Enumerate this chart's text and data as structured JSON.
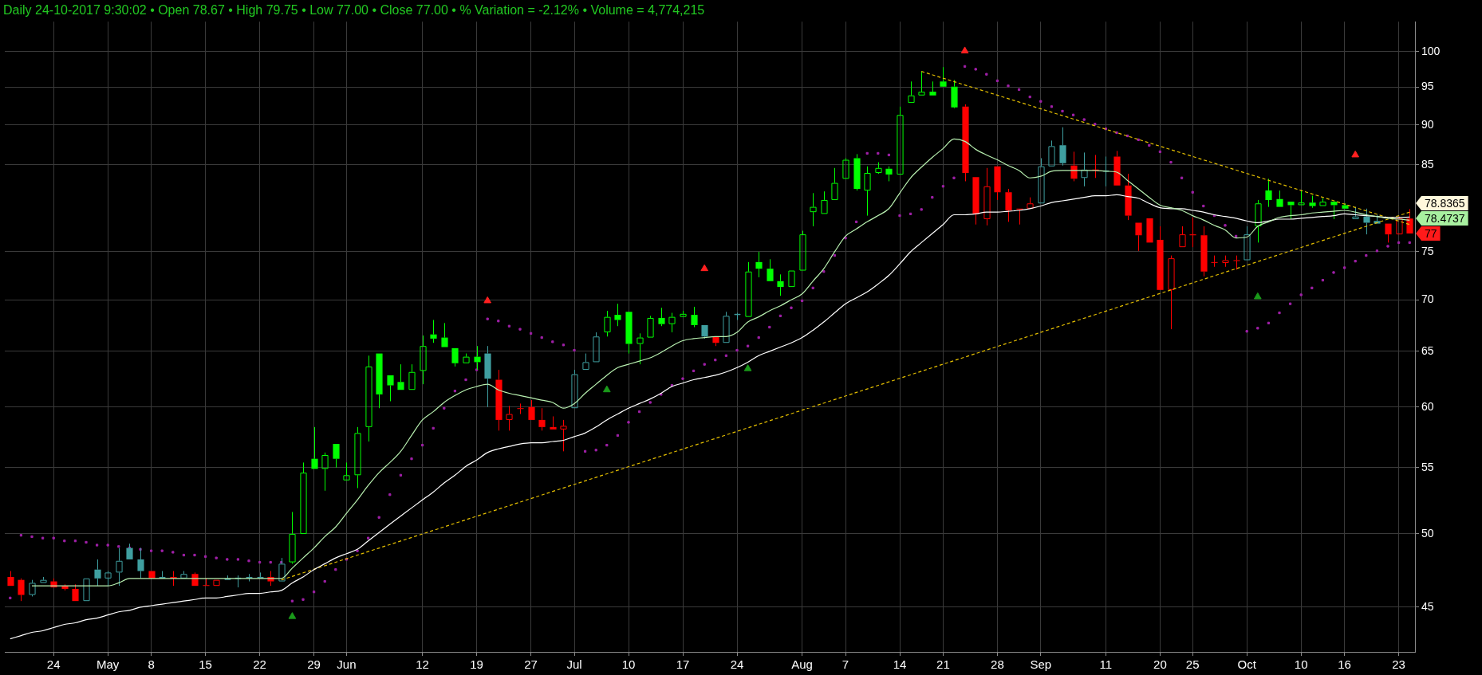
{
  "chart_data": {
    "type": "candlestick",
    "title": "Daily 24-10-2017 9:30:02 • Open 78.67 • High 79.75 • Low 77.00 • Close 77.00 • % Variation = -2.12% • Volume = 4,774,215",
    "categories": [
      null,
      null,
      null,
      null,
      "24",
      null,
      null,
      null,
      null,
      "May",
      null,
      null,
      null,
      "8",
      null,
      null,
      null,
      null,
      "15",
      null,
      null,
      null,
      null,
      "22",
      null,
      null,
      null,
      null,
      "29",
      null,
      null,
      "Jun",
      null,
      null,
      null,
      null,
      null,
      null,
      "12",
      null,
      null,
      null,
      null,
      "19",
      null,
      null,
      null,
      null,
      "27",
      null,
      null,
      null,
      "Jul",
      null,
      null,
      null,
      null,
      "10",
      null,
      null,
      null,
      null,
      "17",
      null,
      null,
      null,
      null,
      "24",
      null,
      null,
      null,
      null,
      null,
      "Aug",
      null,
      null,
      null,
      "7",
      null,
      null,
      null,
      null,
      "14",
      null,
      null,
      null,
      "21",
      null,
      null,
      null,
      null,
      "28",
      null,
      null,
      null,
      "Sep",
      null,
      null,
      null,
      null,
      null,
      "11",
      null,
      null,
      null,
      null,
      "20",
      null,
      null,
      "25",
      null,
      null,
      null,
      null,
      "Oct",
      null,
      null,
      null,
      null,
      "10",
      null,
      null,
      null,
      "16",
      null,
      null,
      null,
      null,
      "23",
      null
    ],
    "ohlc": [
      [
        47.0,
        47.4,
        46.4,
        46.4
      ],
      [
        46.8,
        46.9,
        45.4,
        45.8
      ],
      [
        45.8,
        46.8,
        45.7,
        46.6
      ],
      [
        46.6,
        47.0,
        46.6,
        46.8
      ],
      [
        46.7,
        46.9,
        46.3,
        46.3
      ],
      [
        46.4,
        46.5,
        46.1,
        46.2
      ],
      [
        46.2,
        46.5,
        45.4,
        45.4
      ],
      [
        45.4,
        46.9,
        45.4,
        46.9
      ],
      [
        47.5,
        48.2,
        46.4,
        46.9
      ],
      [
        46.9,
        47.4,
        46.4,
        47.3
      ],
      [
        47.3,
        49.0,
        46.4,
        48.1
      ],
      [
        49.0,
        49.3,
        48.2,
        48.2
      ],
      [
        48.2,
        49.0,
        46.9,
        47.4
      ],
      [
        47.4,
        47.4,
        46.9,
        46.9
      ],
      [
        46.9,
        47.4,
        46.9,
        47.0
      ],
      [
        47.0,
        47.4,
        46.4,
        46.9
      ],
      [
        46.9,
        47.4,
        46.9,
        47.2
      ],
      [
        47.2,
        47.3,
        46.4,
        46.4
      ],
      [
        46.45,
        46.9,
        46.4,
        46.4
      ],
      [
        46.4,
        46.8,
        46.4,
        46.8
      ],
      [
        46.8,
        47.1,
        46.8,
        46.9
      ],
      [
        46.9,
        47.1,
        46.3,
        46.95
      ],
      [
        46.9,
        47.2,
        46.7,
        47.0
      ],
      [
        46.9,
        47.3,
        46.9,
        47.0
      ],
      [
        47.0,
        47.4,
        46.4,
        46.7
      ],
      [
        46.7,
        48.3,
        46.7,
        47.9
      ],
      [
        48.0,
        51.6,
        47.9,
        50.0
      ],
      [
        50.0,
        55.4,
        50.0,
        54.6
      ],
      [
        55.7,
        58.3,
        54.9,
        54.9
      ],
      [
        54.9,
        56.2,
        53.2,
        56.0
      ],
      [
        56.9,
        56.9,
        55.0,
        55.7
      ],
      [
        54.0,
        55.4,
        54.0,
        54.4
      ],
      [
        54.4,
        58.3,
        53.4,
        57.8
      ],
      [
        58.3,
        64.6,
        57.1,
        63.6
      ],
      [
        64.8,
        64.8,
        59.9,
        61.1
      ],
      [
        62.8,
        62.8,
        60.5,
        61.9
      ],
      [
        62.2,
        63.8,
        61.5,
        61.5
      ],
      [
        61.5,
        63.8,
        61.5,
        63.1
      ],
      [
        63.2,
        66.5,
        62.0,
        65.5
      ],
      [
        66.6,
        68.0,
        65.8,
        66.2
      ],
      [
        66.3,
        67.7,
        65.4,
        65.4
      ],
      [
        65.3,
        65.3,
        63.6,
        63.9
      ],
      [
        63.9,
        64.8,
        63.9,
        64.5
      ],
      [
        64.5,
        65.5,
        63.3,
        64.0
      ],
      [
        64.8,
        65.5,
        60.0,
        62.5
      ],
      [
        62.4,
        63.3,
        58.0,
        58.9
      ],
      [
        58.9,
        60.1,
        58.0,
        59.4
      ],
      [
        59.9,
        60.3,
        59.4,
        59.85
      ],
      [
        60.0,
        60.6,
        58.9,
        58.9
      ],
      [
        58.9,
        59.9,
        58.0,
        58.3
      ],
      [
        58.3,
        59.2,
        58.1,
        58.1
      ],
      [
        58.1,
        58.9,
        56.3,
        58.4
      ],
      [
        59.9,
        63.3,
        59.9,
        62.9
      ],
      [
        63.3,
        64.8,
        63.3,
        64.0
      ],
      [
        64.0,
        66.8,
        64.0,
        66.4
      ],
      [
        66.8,
        68.9,
        66.4,
        68.3
      ],
      [
        68.5,
        69.6,
        67.4,
        68.0
      ],
      [
        68.8,
        68.8,
        64.8,
        65.7
      ],
      [
        65.7,
        66.7,
        63.8,
        66.3
      ],
      [
        66.3,
        68.4,
        66.3,
        68.2
      ],
      [
        68.2,
        69.2,
        67.4,
        67.6
      ],
      [
        67.6,
        68.7,
        66.8,
        68.3
      ],
      [
        68.3,
        68.9,
        68.3,
        68.6
      ],
      [
        68.5,
        69.3,
        67.3,
        67.5
      ],
      [
        67.5,
        67.5,
        66.2,
        66.4
      ],
      [
        66.4,
        66.4,
        65.5,
        65.8
      ],
      [
        65.8,
        68.8,
        65.8,
        68.4
      ],
      [
        68.5,
        68.7,
        68.0,
        68.6
      ],
      [
        68.3,
        73.9,
        68.3,
        72.9
      ],
      [
        73.9,
        75.0,
        72.3,
        73.2
      ],
      [
        73.2,
        74.2,
        71.9,
        71.9
      ],
      [
        71.9,
        72.6,
        70.4,
        71.3
      ],
      [
        71.3,
        73.0,
        71.3,
        73.0
      ],
      [
        73.0,
        77.3,
        73.0,
        76.9
      ],
      [
        79.4,
        81.6,
        77.8,
        80.0
      ],
      [
        79.2,
        81.8,
        79.2,
        80.8
      ],
      [
        80.8,
        84.6,
        80.8,
        82.8
      ],
      [
        83.3,
        85.8,
        83.3,
        85.6
      ],
      [
        85.8,
        86.3,
        81.9,
        82.1
      ],
      [
        81.9,
        84.8,
        79.0,
        84.0
      ],
      [
        84.0,
        85.3,
        83.9,
        84.6
      ],
      [
        84.5,
        84.8,
        83.0,
        83.8
      ],
      [
        83.8,
        92.4,
        83.8,
        91.3
      ],
      [
        92.9,
        95.8,
        92.9,
        93.9
      ],
      [
        93.9,
        97.2,
        93.9,
        94.4
      ],
      [
        94.4,
        95.8,
        93.9,
        93.9
      ],
      [
        95.8,
        97.8,
        95.1,
        95.1
      ],
      [
        95.1,
        96.0,
        92.2,
        92.3
      ],
      [
        92.4,
        92.7,
        83.0,
        84.0
      ],
      [
        83.5,
        83.5,
        78.0,
        79.2
      ],
      [
        78.6,
        84.6,
        77.9,
        82.4
      ],
      [
        84.8,
        84.8,
        80.8,
        81.7
      ],
      [
        81.7,
        82.1,
        78.3,
        79.6
      ],
      [
        79.8,
        79.8,
        78.0,
        79.7
      ],
      [
        79.8,
        81.1,
        79.8,
        80.4
      ],
      [
        80.4,
        85.8,
        80.4,
        84.8
      ],
      [
        84.8,
        88.0,
        84.8,
        87.3
      ],
      [
        87.4,
        89.7,
        84.9,
        85.2
      ],
      [
        84.9,
        86.6,
        83.0,
        83.3
      ],
      [
        83.4,
        86.5,
        82.4,
        84.4
      ],
      [
        84.4,
        86.2,
        83.4,
        84.3
      ],
      [
        84.2,
        86.0,
        82.4,
        84.3
      ],
      [
        86.0,
        86.7,
        82.5,
        82.5
      ],
      [
        82.5,
        83.9,
        78.5,
        79.0
      ],
      [
        78.2,
        78.2,
        75.1,
        76.8
      ],
      [
        78.7,
        78.7,
        76.0,
        76.0
      ],
      [
        76.3,
        77.8,
        71.0,
        71.0
      ],
      [
        71.0,
        74.6,
        67.1,
        74.3
      ],
      [
        75.5,
        77.8,
        75.5,
        76.9
      ],
      [
        76.9,
        78.8,
        75.5,
        76.8
      ],
      [
        76.8,
        77.8,
        72.4,
        72.9
      ],
      [
        73.9,
        74.6,
        73.4,
        73.85
      ],
      [
        73.8,
        74.6,
        73.4,
        74.1
      ],
      [
        74.1,
        74.6,
        73.1,
        74.05
      ],
      [
        74.1,
        77.8,
        74.1,
        76.9
      ],
      [
        77.8,
        80.8,
        76.0,
        80.4
      ],
      [
        81.9,
        83.3,
        80.0,
        80.8
      ],
      [
        80.9,
        81.9,
        80.0,
        80.0
      ],
      [
        80.6,
        80.6,
        78.6,
        80.2
      ],
      [
        80.2,
        81.9,
        80.2,
        80.5
      ],
      [
        80.5,
        81.3,
        79.9,
        80.1
      ],
      [
        80.1,
        81.0,
        80.1,
        80.6
      ],
      [
        80.6,
        80.6,
        78.6,
        80.2
      ],
      [
        80.2,
        80.4,
        79.8,
        79.8
      ],
      [
        78.6,
        80.0,
        78.6,
        78.9
      ],
      [
        78.9,
        79.8,
        76.9,
        78.2
      ],
      [
        78.4,
        79.1,
        78.1,
        78.1
      ],
      [
        78.1,
        78.1,
        76.0,
        76.9
      ],
      [
        76.9,
        78.9,
        76.9,
        78.7
      ],
      [
        78.67,
        79.75,
        77.0,
        77.0
      ]
    ],
    "colors": [
      "#ff0000",
      "#ff0000",
      "#3f9fa0",
      "#3f9fa0",
      "#ff0000",
      "#ff0000",
      "#ff0000",
      "#3f9fa0",
      "#3f9fa0",
      "#3f9fa0",
      "#3f9fa0",
      "#3f9fa0",
      "#3f9fa0",
      "#ff0000",
      "#3f9fa0",
      "#ff0000",
      "#3f9fa0",
      "#ff0000",
      "#ff0000",
      "#ff0000",
      "#3f9fa0",
      "#3f9fa0",
      "#3f9fa0",
      "#3f9fa0",
      "#ff0000",
      "#3f9fa0",
      "#00ff00",
      "#00ff00",
      "#00ff00",
      "#00ff00",
      "#00ff00",
      "#00ff00",
      "#00ff00",
      "#00ff00",
      "#00ff00",
      "#00ff00",
      "#00ff00",
      "#00ff00",
      "#00ff00",
      "#00ff00",
      "#00ff00",
      "#00ff00",
      "#00ff00",
      "#00ff00",
      "#3f9fa0",
      "#ff0000",
      "#ff0000",
      "#ff0000",
      "#ff0000",
      "#ff0000",
      "#ff0000",
      "#ff0000",
      "#3f9fa0",
      "#3f9fa0",
      "#3f9fa0",
      "#00ff00",
      "#00ff00",
      "#00ff00",
      "#00ff00",
      "#00ff00",
      "#00ff00",
      "#00ff00",
      "#00ff00",
      "#00ff00",
      "#3f9fa0",
      "#ff0000",
      "#3f9fa0",
      "#3f9fa0",
      "#00ff00",
      "#00ff00",
      "#00ff00",
      "#00ff00",
      "#00ff00",
      "#00ff00",
      "#00ff00",
      "#00ff00",
      "#00ff00",
      "#00ff00",
      "#00ff00",
      "#00ff00",
      "#00ff00",
      "#00ff00",
      "#00ff00",
      "#00ff00",
      "#00ff00",
      "#00ff00",
      "#00ff00",
      "#00ff00",
      "#ff0000",
      "#ff0000",
      "#ff0000",
      "#ff0000",
      "#ff0000",
      "#ff0000",
      "#ff0000",
      "#3f9fa0",
      "#3f9fa0",
      "#3f9fa0",
      "#ff0000",
      "#3f9fa0",
      "#ff0000",
      "#3f9fa0",
      "#ff0000",
      "#ff0000",
      "#ff0000",
      "#ff0000",
      "#ff0000",
      "#ff0000",
      "#ff0000",
      "#ff0000",
      "#ff0000",
      "#ff0000",
      "#ff0000",
      "#ff0000",
      "#3f9fa0",
      "#00ff00",
      "#00ff00",
      "#00ff00",
      "#00ff00",
      "#00ff00",
      "#00ff00",
      "#00ff00",
      "#00ff00",
      "#00ff00",
      "#3f9fa0",
      "#3f9fa0",
      "#3f9fa0",
      "#ff0000",
      "#ff0000",
      "#ff0000"
    ],
    "series": [
      {
        "type": "line",
        "color": "#b8f0b0",
        "values": [
          null,
          null,
          46.4,
          46.4,
          46.4,
          46.4,
          46.4,
          46.4,
          46.4,
          46.4,
          46.6,
          46.9,
          46.9,
          46.9,
          46.9,
          46.9,
          46.9,
          46.9,
          46.9,
          46.9,
          46.9,
          46.9,
          46.9,
          46.9,
          46.9,
          46.9,
          47.6,
          48.3,
          49.0,
          49.8,
          50.5,
          51.5,
          52.5,
          53.6,
          54.6,
          55.4,
          56.3,
          57.6,
          58.9,
          59.6,
          60.4,
          61.0,
          61.5,
          61.8,
          62.0,
          61.5,
          61.2,
          61.0,
          60.8,
          60.6,
          60.4,
          59.9,
          60.3,
          61.2,
          62.0,
          62.8,
          63.5,
          63.8,
          64.1,
          64.4,
          64.9,
          65.5,
          66.0,
          66.2,
          66.3,
          66.4,
          66.4,
          66.8,
          67.8,
          68.3,
          68.9,
          69.4,
          70.0,
          70.6,
          71.9,
          73.2,
          75.0,
          76.7,
          77.5,
          78.3,
          79.0,
          79.8,
          81.6,
          83.4,
          84.7,
          85.9,
          87.0,
          88.2,
          87.9,
          86.9,
          86.2,
          85.6,
          84.9,
          84.3,
          83.4,
          83.6,
          84.2,
          84.3,
          84.3,
          84.3,
          84.3,
          84.2,
          84.1,
          83.1,
          82.1,
          81.1,
          80.2,
          79.9,
          79.6,
          79.0,
          78.5,
          77.9,
          77.4,
          76.5,
          76.6,
          77.8,
          78.3,
          78.8,
          79.0,
          79.1,
          79.3,
          79.4,
          79.5,
          79.6,
          79.4,
          79.1,
          78.9,
          78.7,
          78.6,
          78.4737
        ]
      },
      {
        "type": "line",
        "color": "#ffffff",
        "values": [
          43.0,
          43.2,
          43.4,
          43.5,
          43.7,
          43.9,
          44.0,
          44.2,
          44.3,
          44.5,
          44.7,
          44.8,
          45.0,
          45.1,
          45.2,
          45.3,
          45.4,
          45.5,
          45.6,
          45.6,
          45.7,
          45.8,
          45.9,
          45.9,
          46.0,
          46.1,
          46.6,
          47.0,
          47.5,
          47.9,
          48.3,
          48.6,
          48.9,
          49.5,
          50.1,
          50.7,
          51.3,
          51.9,
          52.5,
          53.1,
          53.8,
          54.4,
          55.1,
          55.6,
          56.2,
          56.5,
          56.7,
          56.9,
          57.0,
          57.0,
          57.1,
          57.2,
          57.5,
          57.8,
          58.3,
          58.9,
          59.4,
          59.9,
          60.3,
          60.7,
          61.2,
          61.8,
          62.1,
          62.4,
          62.6,
          62.8,
          63.1,
          63.5,
          64.0,
          64.6,
          65.0,
          65.4,
          65.8,
          66.3,
          67.0,
          67.8,
          68.7,
          69.6,
          70.2,
          70.8,
          71.6,
          72.5,
          73.7,
          75.0,
          76.0,
          77.0,
          78.0,
          79.1,
          79.1,
          79.2,
          79.4,
          79.4,
          79.5,
          79.6,
          79.8,
          80.1,
          80.5,
          80.7,
          80.9,
          81.1,
          81.3,
          81.3,
          81.4,
          81.2,
          81.0,
          80.4,
          79.9,
          79.8,
          79.8,
          79.6,
          79.4,
          79.1,
          78.9,
          78.7,
          78.4,
          78.2,
          78.4,
          78.6,
          78.6,
          78.7,
          78.8,
          78.9,
          79.0,
          79.2,
          79.1,
          79.0,
          78.9,
          78.8,
          78.8,
          78.8365
        ]
      },
      {
        "type": "scatter",
        "color": "#a020a8",
        "marker": "square",
        "values": [
          45.6,
          49.9,
          49.8,
          49.7,
          49.7,
          49.5,
          49.5,
          49.4,
          49.2,
          49.2,
          49.1,
          49.0,
          48.9,
          48.8,
          48.8,
          48.7,
          48.5,
          48.5,
          48.4,
          48.3,
          48.2,
          48.2,
          48.1,
          48.0,
          48.0,
          48.0,
          45.4,
          45.5,
          46.0,
          46.7,
          47.5,
          48.2,
          48.8,
          49.7,
          51.2,
          52.9,
          54.4,
          55.7,
          56.8,
          58.2,
          59.9,
          61.4,
          62.4,
          63.3,
          68.1,
          67.9,
          67.4,
          67.1,
          66.7,
          66.3,
          65.9,
          65.6,
          65.1,
          56.3,
          56.4,
          56.8,
          57.6,
          58.7,
          59.6,
          60.4,
          61.1,
          61.9,
          62.5,
          63.2,
          63.8,
          64.2,
          64.6,
          65.1,
          65.5,
          66.3,
          67.3,
          68.4,
          69.2,
          69.9,
          71.2,
          72.9,
          74.6,
          76.5,
          78.3,
          86.4,
          86.4,
          86.2,
          79.0,
          79.2,
          79.7,
          81.1,
          82.4,
          83.4,
          97.9,
          97.5,
          96.8,
          95.9,
          95.2,
          94.7,
          93.7,
          93.1,
          92.4,
          91.8,
          91.3,
          90.7,
          90.1,
          89.5,
          89.0,
          88.6,
          88.1,
          87.4,
          86.6,
          85.3,
          83.4,
          81.7,
          80.1,
          79.0,
          77.9,
          76.7,
          66.9,
          67.2,
          67.7,
          68.7,
          69.6,
          70.5,
          71.2,
          72.0,
          72.8,
          73.3,
          74.0,
          74.6,
          75.1,
          75.6,
          76.0,
          76.0
        ]
      },
      {
        "type": "line",
        "color": "#e6c000",
        "line_style": "dashed",
        "values": [
          null,
          null,
          null,
          null,
          null,
          null,
          null,
          null,
          null,
          null,
          null,
          null,
          null,
          null,
          null,
          null,
          null,
          null,
          null,
          null,
          null,
          null,
          null,
          null,
          null,
          46.8,
          null,
          null,
          null,
          null,
          null,
          null,
          null,
          null,
          null,
          null,
          null,
          null,
          null,
          null,
          null,
          null,
          null,
          null,
          null,
          null,
          null,
          null,
          null,
          null,
          null,
          null,
          null,
          null,
          null,
          null,
          null,
          null,
          null,
          null,
          null,
          null,
          null,
          null,
          null,
          null,
          null,
          null,
          null,
          null,
          null,
          null,
          null,
          null,
          null,
          null,
          null,
          null,
          null,
          null,
          null,
          null,
          null,
          null,
          null,
          null,
          null,
          null,
          null,
          null,
          null,
          null,
          null,
          null,
          null,
          null,
          null,
          null,
          null,
          null,
          null,
          null,
          null,
          null,
          null,
          null,
          null,
          null,
          null,
          null,
          null,
          null,
          null,
          null,
          null,
          null,
          null,
          null,
          null,
          null,
          null,
          null,
          null,
          null,
          null,
          null,
          null,
          null,
          null,
          79.4
        ]
      },
      {
        "type": "line",
        "color": "#e6c000",
        "line_style": "dashed",
        "values": [
          null,
          null,
          null,
          null,
          null,
          null,
          null,
          null,
          null,
          null,
          null,
          null,
          null,
          null,
          null,
          null,
          null,
          null,
          null,
          null,
          null,
          null,
          null,
          null,
          null,
          null,
          null,
          null,
          null,
          null,
          null,
          null,
          null,
          null,
          null,
          null,
          null,
          null,
          null,
          null,
          null,
          null,
          null,
          null,
          null,
          null,
          null,
          null,
          null,
          null,
          null,
          null,
          null,
          null,
          null,
          null,
          null,
          null,
          null,
          null,
          null,
          null,
          null,
          null,
          null,
          null,
          null,
          null,
          null,
          null,
          null,
          null,
          null,
          null,
          null,
          null,
          null,
          null,
          null,
          null,
          null,
          null,
          null,
          null,
          97.2,
          null,
          null,
          null,
          null,
          null,
          null,
          null,
          null,
          null,
          null,
          null,
          null,
          null,
          null,
          null,
          null,
          null,
          null,
          null,
          null,
          null,
          null,
          null,
          null,
          null,
          null,
          null,
          null,
          null,
          null,
          null,
          null,
          null,
          null,
          null,
          null,
          null,
          null,
          null,
          null,
          null,
          null,
          null,
          null,
          78.0
        ]
      },
      {
        "type": "scatter",
        "color": "#ff2020",
        "marker": "triangle",
        "values": [
          null,
          null,
          null,
          null,
          null,
          null,
          null,
          null,
          null,
          null,
          null,
          null,
          null,
          null,
          null,
          null,
          null,
          null,
          null,
          null,
          null,
          null,
          null,
          null,
          null,
          null,
          null,
          null,
          null,
          null,
          null,
          null,
          null,
          null,
          null,
          null,
          null,
          null,
          null,
          null,
          null,
          null,
          null,
          null,
          69.9,
          null,
          null,
          null,
          null,
          null,
          null,
          null,
          null,
          null,
          null,
          null,
          null,
          null,
          null,
          null,
          null,
          null,
          null,
          null,
          73.2,
          null,
          null,
          null,
          null,
          null,
          null,
          null,
          null,
          null,
          null,
          null,
          null,
          null,
          null,
          null,
          null,
          null,
          null,
          null,
          null,
          null,
          null,
          null,
          100.1,
          null,
          null,
          null,
          null,
          null,
          null,
          null,
          null,
          null,
          null,
          null,
          null,
          null,
          null,
          null,
          null,
          null,
          null,
          null,
          null,
          null,
          null,
          null,
          null,
          null,
          null,
          null,
          null,
          null,
          null,
          null,
          null,
          null,
          null,
          null,
          86.2,
          null,
          null,
          null,
          null,
          null
        ]
      },
      {
        "type": "scatter",
        "color": "#1a9a1a",
        "marker": "triangle",
        "values": [
          null,
          null,
          null,
          null,
          null,
          null,
          null,
          null,
          null,
          null,
          null,
          null,
          null,
          null,
          null,
          null,
          null,
          null,
          null,
          null,
          null,
          null,
          null,
          null,
          null,
          null,
          44.4,
          null,
          null,
          null,
          null,
          null,
          null,
          null,
          null,
          null,
          null,
          null,
          null,
          null,
          null,
          null,
          null,
          null,
          null,
          null,
          null,
          null,
          null,
          null,
          null,
          null,
          null,
          null,
          null,
          61.5,
          null,
          null,
          null,
          null,
          null,
          null,
          null,
          null,
          null,
          null,
          null,
          null,
          63.4,
          null,
          null,
          null,
          null,
          null,
          null,
          null,
          null,
          null,
          null,
          null,
          null,
          null,
          null,
          null,
          null,
          null,
          null,
          null,
          null,
          null,
          null,
          null,
          null,
          null,
          null,
          null,
          null,
          null,
          null,
          null,
          null,
          null,
          null,
          null,
          null,
          null,
          null,
          null,
          null,
          null,
          null,
          null,
          null,
          null,
          null,
          70.3,
          null,
          null,
          null,
          null,
          null,
          null,
          null,
          null,
          null,
          null,
          null,
          null,
          null,
          null
        ]
      }
    ],
    "ylim": [
      42.2,
      104.4
    ],
    "yticks": [
      45,
      50,
      55,
      60,
      65,
      70,
      75,
      85,
      90,
      95,
      100
    ],
    "log": "y",
    "grid": true,
    "annotations": [
      "78.8365",
      "78.4737",
      "77"
    ]
  }
}
